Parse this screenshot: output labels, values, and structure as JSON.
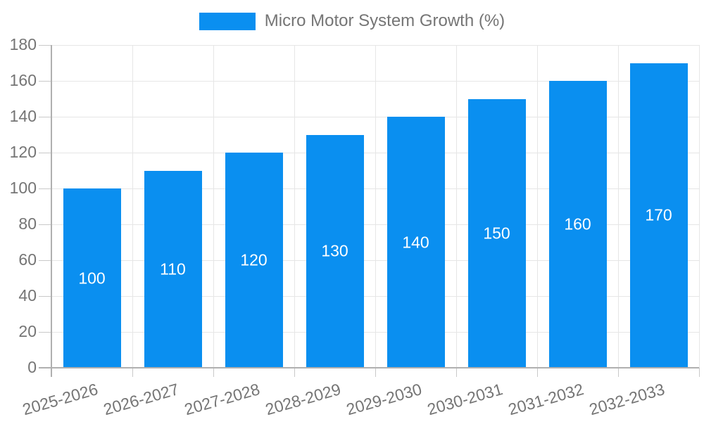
{
  "chart_data": {
    "type": "bar",
    "legend": "Micro Motor System Growth (%)",
    "legend_position": "top",
    "categories": [
      "2025-2026",
      "2026-2027",
      "2027-2028",
      "2028-2029",
      "2029-2030",
      "2030-2031",
      "2031-2032",
      "2032-2033"
    ],
    "values": [
      100,
      110,
      120,
      130,
      140,
      150,
      160,
      170
    ],
    "value_labels": [
      "100",
      "110",
      "120",
      "130",
      "140",
      "150",
      "160",
      "170"
    ],
    "xlabel": "",
    "ylabel": "",
    "ylim": [
      0,
      180
    ],
    "ytick_step": 20,
    "yticks": [
      "0",
      "20",
      "40",
      "60",
      "80",
      "100",
      "120",
      "140",
      "160",
      "180"
    ],
    "grid": true,
    "value_labels_inside_bars": true,
    "colors": {
      "bar": "#0a8ff0",
      "value_label": "#ffffff",
      "axis_label": "#757575",
      "legend_text": "#757575",
      "gridline": "#e6e6e6",
      "tick": "#c9c9c9",
      "axis_line": "#b0b0b0",
      "background": "#ffffff"
    }
  }
}
